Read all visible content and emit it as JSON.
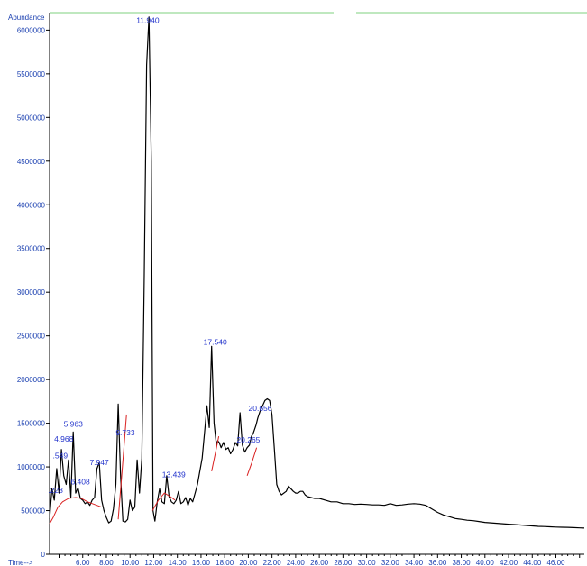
{
  "chart_data": {
    "type": "line",
    "title": "",
    "ylabel": "Abundance",
    "xlabel": "Time-->",
    "xlim": [
      3.2,
      48.4
    ],
    "ylim": [
      0,
      6200000
    ],
    "y_ticks": [
      0,
      500000,
      1000000,
      1500000,
      2000000,
      2500000,
      3000000,
      3500000,
      4000000,
      4500000,
      5000000,
      5500000,
      6000000
    ],
    "y_tick_labels": [
      "0",
      "500000",
      "1000000",
      "1500000",
      "2000000",
      "2500000",
      "3000000",
      "3500000",
      "4000000",
      "4500000",
      "5000000",
      "5500000",
      "6000000"
    ],
    "x_ticks": [
      6,
      8,
      10,
      12,
      14,
      16,
      18,
      20,
      22,
      24,
      26,
      28,
      30,
      32,
      34,
      36,
      38,
      40,
      42,
      44,
      46
    ],
    "x_tick_labels": [
      "6.00",
      "8.00",
      "10.00",
      "12.00",
      "14.00",
      "16.00",
      "18.00",
      "20.00",
      "22.00",
      "24.00",
      "26.00",
      "28.00",
      "30.00",
      "32.00",
      "34.00",
      "36.00",
      "38.00",
      "40.00",
      "42.00",
      "44.00",
      "46.00"
    ],
    "peak_labels": [
      {
        "text": ".228",
        "x": 3.7,
        "y": 700000
      },
      {
        "text": ".549",
        "x": 4.1,
        "y": 1100000
      },
      {
        "text": "4.968",
        "x": 4.4,
        "y": 1290000
      },
      {
        "text": "5.963",
        "x": 5.2,
        "y": 1460000
      },
      {
        "text": "6.408",
        "x": 5.8,
        "y": 800000
      },
      {
        "text": "7.947",
        "x": 7.4,
        "y": 1020000
      },
      {
        "text": "9.733",
        "x": 9.6,
        "y": 1360000
      },
      {
        "text": "11.940",
        "x": 11.5,
        "y": 6080000
      },
      {
        "text": "13.439",
        "x": 13.7,
        "y": 880000
      },
      {
        "text": "17.540",
        "x": 17.2,
        "y": 2400000
      },
      {
        "text": "20.265",
        "x": 20.0,
        "y": 1280000
      },
      {
        "text": "20.656",
        "x": 21.0,
        "y": 1640000
      }
    ],
    "series": [
      {
        "color": "#000000",
        "x": [
          3.2,
          3.4,
          3.6,
          3.8,
          4.0,
          4.2,
          4.4,
          4.6,
          4.8,
          5.0,
          5.2,
          5.4,
          5.6,
          5.8,
          6.0,
          6.2,
          6.4,
          6.6,
          6.8,
          7.0,
          7.2,
          7.4,
          7.6,
          7.8,
          8.0,
          8.2,
          8.4,
          8.6,
          8.8,
          9.0,
          9.2,
          9.4,
          9.6,
          9.8,
          10.0,
          10.2,
          10.4,
          10.6,
          10.8,
          11.0,
          11.2,
          11.4,
          11.6,
          11.8,
          11.94,
          12.1,
          12.3,
          12.5,
          12.7,
          12.9,
          13.1,
          13.3,
          13.5,
          13.7,
          13.9,
          14.1,
          14.3,
          14.5,
          14.7,
          14.9,
          15.1,
          15.3,
          15.5,
          15.7,
          15.9,
          16.1,
          16.3,
          16.5,
          16.7,
          16.9,
          17.1,
          17.3,
          17.4,
          17.54,
          17.7,
          17.9,
          18.1,
          18.3,
          18.5,
          18.7,
          18.9,
          19.1,
          19.3,
          19.5,
          19.7,
          19.9,
          20.1,
          20.265,
          20.4,
          20.5,
          20.656,
          20.8,
          21.0,
          21.2,
          21.4,
          21.6,
          21.8,
          22.0,
          22.2,
          22.4,
          22.6,
          22.8,
          23.0,
          23.2,
          23.4,
          23.6,
          23.8,
          24.0,
          24.2,
          24.4,
          24.6,
          24.8,
          25.0,
          25.3,
          25.6,
          26.0,
          26.5,
          27.0,
          27.5,
          28.0,
          28.5,
          29.0,
          29.5,
          30.0,
          30.5,
          31.0,
          31.5,
          32.0,
          32.5,
          33.0,
          33.5,
          34.0,
          34.5,
          35.0,
          35.5,
          36.0,
          36.5,
          37.0,
          37.5,
          38.0,
          38.5,
          39.0,
          39.5,
          40.0,
          40.5,
          41.0,
          41.5,
          42.0,
          42.5,
          43.0,
          43.5,
          44.0,
          44.5,
          45.0,
          45.5,
          46.0,
          46.5,
          47.0,
          47.5,
          48.0,
          48.4
        ],
        "y": [
          400000,
          750000,
          620000,
          980000,
          700000,
          1200000,
          900000,
          800000,
          1080000,
          650000,
          1400000,
          700000,
          760000,
          640000,
          620000,
          580000,
          600000,
          560000,
          620000,
          650000,
          980000,
          1050000,
          620000,
          500000,
          420000,
          360000,
          380000,
          520000,
          800000,
          1720000,
          900000,
          380000,
          370000,
          400000,
          620000,
          500000,
          540000,
          1080000,
          700000,
          1100000,
          3200000,
          5600000,
          6150000,
          4500000,
          500000,
          380000,
          600000,
          750000,
          600000,
          580000,
          900000,
          660000,
          600000,
          580000,
          620000,
          720000,
          580000,
          600000,
          650000,
          560000,
          640000,
          600000,
          700000,
          800000,
          950000,
          1100000,
          1400000,
          1700000,
          1450000,
          2380000,
          1500000,
          1250000,
          1300000,
          1280000,
          1220000,
          1280000,
          1200000,
          1220000,
          1150000,
          1200000,
          1280000,
          1240000,
          1620000,
          1250000,
          1170000,
          1220000,
          1250000,
          1350000,
          1380000,
          1420000,
          1480000,
          1560000,
          1640000,
          1700000,
          1760000,
          1780000,
          1760000,
          1600000,
          1200000,
          800000,
          720000,
          680000,
          700000,
          720000,
          780000,
          750000,
          720000,
          700000,
          700000,
          720000,
          720000,
          680000,
          660000,
          650000,
          640000,
          640000,
          620000,
          600000,
          600000,
          580000,
          580000,
          570000,
          575000,
          570000,
          565000,
          565000,
          560000,
          580000,
          560000,
          565000,
          575000,
          580000,
          575000,
          560000,
          520000,
          480000,
          450000,
          430000,
          410000,
          400000,
          390000,
          385000,
          375000,
          365000,
          360000,
          355000,
          350000,
          345000,
          340000,
          335000,
          330000,
          325000,
          320000,
          318000,
          315000,
          312000,
          310000,
          308000,
          305000,
          302000,
          300000
        ]
      },
      {
        "color": "#d92020",
        "x": [
          3.2,
          3.5,
          3.9,
          4.3,
          4.8,
          5.4,
          5.9,
          6.4,
          7.2,
          7.6
        ],
        "y": [
          350000,
          420000,
          540000,
          600000,
          640000,
          650000,
          640000,
          600000,
          560000,
          540000
        ]
      },
      {
        "color": "#d92020",
        "x": [
          9.0,
          9.3,
          9.7
        ],
        "y": [
          400000,
          900000,
          1600000
        ]
      },
      {
        "color": "#d92020",
        "x": [
          11.9,
          12.4,
          12.9,
          13.4,
          13.8
        ],
        "y": [
          500000,
          620000,
          700000,
          660000,
          620000
        ]
      },
      {
        "color": "#d92020",
        "x": [
          16.9,
          17.2,
          17.5
        ],
        "y": [
          950000,
          1150000,
          1350000
        ]
      },
      {
        "color": "#d92020",
        "x": [
          19.9,
          20.3,
          20.7
        ],
        "y": [
          900000,
          1050000,
          1220000
        ]
      }
    ]
  }
}
